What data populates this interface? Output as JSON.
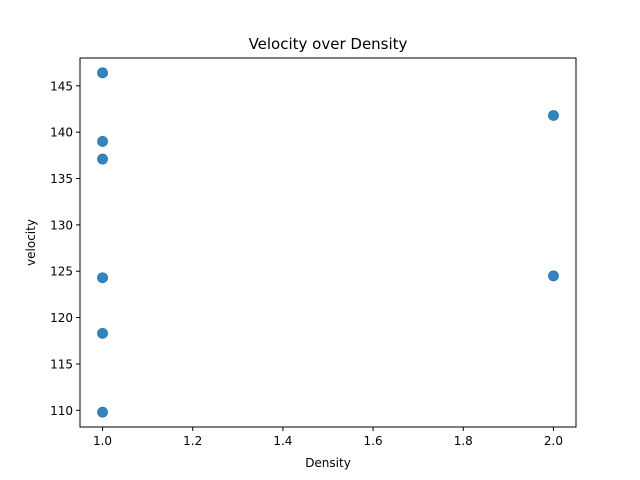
{
  "chart_data": {
    "type": "scatter",
    "title": "Velocity over Density",
    "xlabel": "Density",
    "ylabel": "velocity",
    "xlim": [
      0.95,
      2.05
    ],
    "ylim": [
      108.2,
      148.0
    ],
    "x_ticks": [
      1.0,
      1.2,
      1.4,
      1.6,
      1.8,
      2.0
    ],
    "x_tick_labels": [
      "1.0",
      "1.2",
      "1.4",
      "1.6",
      "1.8",
      "2.0"
    ],
    "y_ticks": [
      110,
      115,
      120,
      125,
      130,
      135,
      140,
      145
    ],
    "y_tick_labels": [
      "110",
      "115",
      "120",
      "125",
      "130",
      "135",
      "140",
      "145"
    ],
    "grid": false,
    "marker_color": "#1f77b4",
    "points": [
      {
        "x": 1.0,
        "y": 146.4
      },
      {
        "x": 1.0,
        "y": 139.0
      },
      {
        "x": 1.0,
        "y": 137.1
      },
      {
        "x": 1.0,
        "y": 124.3
      },
      {
        "x": 1.0,
        "y": 118.3
      },
      {
        "x": 1.0,
        "y": 109.8
      },
      {
        "x": 2.0,
        "y": 141.8
      },
      {
        "x": 2.0,
        "y": 124.5
      }
    ]
  }
}
